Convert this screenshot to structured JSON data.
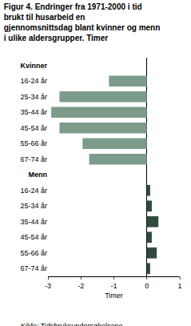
{
  "chart_data": {
    "type": "bar",
    "orientation": "horizontal",
    "title": "Figur 4. Endringer fra 1971-2000 i tid brukt til husarbeid en gjennomsnittsdag blant kvinner og menn i ulike aldersgrupper. Timer",
    "categories": [
      "Kvinner",
      "16-24 år",
      "25-34 år",
      "35-44 år",
      "45-54 år",
      "55-66 år",
      "67-74 år",
      "Menn",
      "16-24 år",
      "25-34 år",
      "35-44 år",
      "45-54 år",
      "55-66 år",
      "67-74 år"
    ],
    "values": [
      null,
      -1.15,
      -2.65,
      -2.9,
      -2.65,
      -1.95,
      -1.75,
      null,
      0.1,
      0.15,
      0.35,
      0.15,
      0.3,
      0.1
    ],
    "colors": [
      null,
      "#7d9b8b",
      "#7d9b8b",
      "#7d9b8b",
      "#7d9b8b",
      "#7d9b8b",
      "#7d9b8b",
      null,
      "#2f4b3d",
      "#2f4b3d",
      "#2f4b3d",
      "#2f4b3d",
      "#2f4b3d",
      "#2f4b3d"
    ],
    "x_label": "Timer",
    "xlim": [
      -3,
      1
    ],
    "xticks": [
      -3,
      -2,
      -1,
      0,
      1
    ],
    "grid": false,
    "annotations": [
      "Kilde: Tidsbruksundersøkelsene."
    ]
  }
}
